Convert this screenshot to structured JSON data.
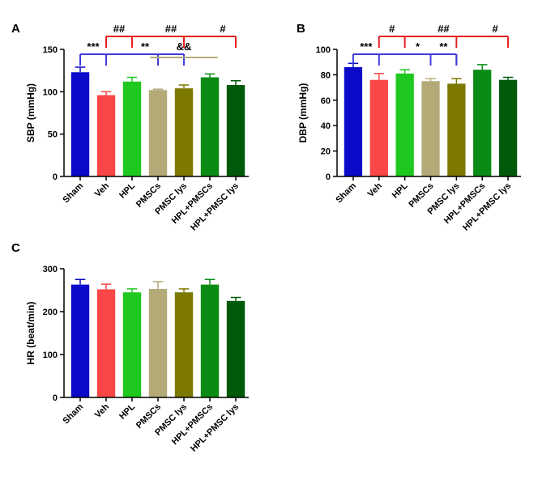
{
  "colors": {
    "Sham": "#0a0ac8",
    "Veh": "#fa4646",
    "HPL": "#1ec81e",
    "PMSCs": "#b4aa78",
    "PMSC lys": "#7d7800",
    "HPL+PMSCs": "#0a8c14",
    "HPL+PMSC lys": "#005a0a",
    "blue_bracket": "#3c3cdc",
    "red_bracket": "#e61e1e",
    "olive_bracket": "#b4aa78"
  },
  "chart_data": [
    {
      "panel": "A",
      "type": "bar",
      "ylabel": "SBP (mmHg)",
      "ylim": [
        0,
        150
      ],
      "yticks": [
        0,
        50,
        100,
        150
      ],
      "categories": [
        "Sham",
        "Veh",
        "HPL",
        "PMSCs",
        "PMSC lys",
        "HPL+PMSCs",
        "HPL+PMSC lys"
      ],
      "values": [
        123,
        96,
        112,
        102,
        104,
        117,
        108
      ],
      "errors": [
        6,
        4,
        5,
        1,
        4,
        4,
        5
      ],
      "annotations": [
        {
          "label": "***",
          "color": "blue_bracket",
          "from": 0,
          "to": 4,
          "level": 1,
          "text_at": 0.5
        },
        {
          "label": "**",
          "color": "blue_bracket",
          "from": 1,
          "to": 4,
          "level": 1,
          "text_at": 2.5,
          "no_left_drop": true
        },
        {
          "label": "&&",
          "color": "olive_bracket",
          "from": 3,
          "to": 5,
          "level": 1,
          "text_at": 4.0,
          "flat": true
        },
        {
          "label": "##",
          "color": "red_bracket",
          "from": 1,
          "to": 6,
          "level": 2,
          "text_at": 1.5
        },
        {
          "label": "##",
          "color": "red_bracket",
          "from": 1,
          "to": 6,
          "level": 2,
          "text_at": 3.5
        },
        {
          "label": "#",
          "color": "red_bracket",
          "from": 1,
          "to": 6,
          "level": 2,
          "text_at": 5.5
        }
      ]
    },
    {
      "panel": "B",
      "type": "bar",
      "ylabel": "DBP (mmHg)",
      "ylim": [
        0,
        100
      ],
      "yticks": [
        0,
        20,
        40,
        60,
        80,
        100
      ],
      "categories": [
        "Sham",
        "Veh",
        "HPL",
        "PMSCs",
        "PMSC lys",
        "HPL+PMSCs",
        "HPL+PMSC lys"
      ],
      "values": [
        86,
        76,
        81,
        75,
        73,
        84,
        76
      ],
      "errors": [
        3,
        5,
        3,
        2,
        4,
        4,
        2
      ],
      "annotations": [
        {
          "label": "***",
          "color": "blue_bracket",
          "from": 0,
          "to": 4,
          "level": 1,
          "text_at": 0.5
        },
        {
          "label": "*",
          "color": "blue_bracket",
          "from": 1,
          "to": 4,
          "level": 1,
          "text_at": 2.5,
          "no_left_drop": true
        },
        {
          "label": "**",
          "color": "blue_bracket",
          "from": 1,
          "to": 4,
          "level": 1,
          "text_at": 3.5,
          "no_left_drop": true
        },
        {
          "label": "#",
          "color": "red_bracket",
          "from": 1,
          "to": 6,
          "level": 2,
          "text_at": 1.5
        },
        {
          "label": "##",
          "color": "red_bracket",
          "from": 1,
          "to": 6,
          "level": 2,
          "text_at": 3.5
        },
        {
          "label": "#",
          "color": "red_bracket",
          "from": 1,
          "to": 6,
          "level": 2,
          "text_at": 5.5
        }
      ]
    },
    {
      "panel": "C",
      "type": "bar",
      "ylabel": "HR (beat/min)",
      "ylim": [
        0,
        300
      ],
      "yticks": [
        0,
        100,
        200,
        300
      ],
      "categories": [
        "Sham",
        "Veh",
        "HPL",
        "PMSCs",
        "PMSC lys",
        "HPL+PMSCs",
        "HPL+PMSC lys"
      ],
      "values": [
        263,
        252,
        245,
        253,
        245,
        263,
        225
      ],
      "errors": [
        12,
        12,
        8,
        17,
        8,
        12,
        8
      ],
      "annotations": []
    }
  ]
}
